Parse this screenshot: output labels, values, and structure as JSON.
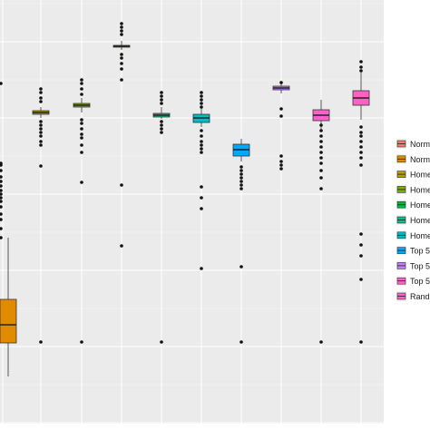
{
  "chart_data": {
    "type": "boxplot",
    "title": "",
    "xlabel": "",
    "ylabel": "",
    "ylim": [
      0,
      1
    ],
    "grid": true,
    "legend_position": "right",
    "series": [
      {
        "name": "Norm",
        "color": "#F8766D",
        "q1": 0.3,
        "median": 0.5,
        "q3": 0.6,
        "whisker_low": 0.2,
        "whisker_high": 0.8,
        "outliers": [
          0.9,
          0.92,
          0.94,
          0.95,
          0.96,
          0.97,
          0.98,
          0.99,
          1.0,
          1.02,
          1.04,
          1.1,
          1.3,
          1.42
        ]
      },
      {
        "name": "Norm",
        "color": "#E08B00",
        "q1": 0.24,
        "median": 0.3,
        "q3": 0.36,
        "whisker_low": 0.18,
        "whisker_high": 0.6,
        "outliers": []
      },
      {
        "name": "Home",
        "color": "#B79F00",
        "q1": 1.403,
        "median": 1.407,
        "q3": 1.411,
        "whisker_low": 1.396,
        "whisker_high": 1.418,
        "outliers": [
          1.22,
          1.34,
          1.36,
          1.37,
          1.38,
          1.39,
          1.45,
          1.47,
          1.49,
          1.51,
          0.3
        ]
      },
      {
        "name": "Home",
        "color": "#7CAE00",
        "q1": 1.418,
        "median": 1.422,
        "q3": 1.426,
        "whisker_low": 1.41,
        "whisker_high": 1.44,
        "outliers": [
          1.16,
          1.24,
          1.3,
          1.33,
          1.35,
          1.37,
          1.38,
          1.39,
          1.45,
          1.47,
          1.49,
          1.51,
          1.52,
          1.53,
          0.3
        ]
      },
      {
        "name": "Home",
        "color": "#00BA38",
        "q1": 1.66,
        "median": 1.662,
        "q3": 1.664,
        "whisker_low": 1.62,
        "whisker_high": 1.72,
        "outliers": [
          1.16,
          0.93,
          1.52,
          1.56,
          1.58,
          1.6,
          1.74,
          1.76,
          1.78,
          1.8
        ]
      },
      {
        "name": "Home",
        "color": "#00C08B",
        "q1": 1.392,
        "median": 1.398,
        "q3": 1.404,
        "whisker_low": 1.37,
        "whisker_high": 1.43,
        "outliers": [
          1.44,
          1.46,
          1.47,
          1.48,
          1.49,
          1.5,
          1.51,
          0.3
        ]
      },
      {
        "name": "Home",
        "color": "#00BFC4",
        "q1": 1.365,
        "median": 1.38,
        "q3": 1.395,
        "whisker_low": 1.34,
        "whisker_high": 1.42,
        "outliers": [
          1.3,
          1.31,
          1.32,
          1.33,
          1.18,
          1.16,
          1.08,
          0.63,
          1.46,
          1.48,
          1.49,
          1.5,
          1.51,
          1.52
        ]
      },
      {
        "name": "Top 5",
        "color": "#00A9FF",
        "q1": 1.24,
        "median": 1.26,
        "q3": 1.28,
        "whisker_low": 1.2,
        "whisker_high": 1.3,
        "outliers": [
          1.19,
          1.18,
          1.17,
          1.16,
          1.15,
          0.64,
          0.3
        ]
      },
      {
        "name": "Top 5",
        "color": "#C77CFF",
        "q1": 1.512,
        "median": 1.515,
        "q3": 1.518,
        "whisker_low": 1.5,
        "whisker_high": 1.53,
        "outliers": [
          1.44,
          1.42,
          1.38,
          1.24,
          1.22,
          1.2,
          1.18
        ]
      },
      {
        "name": "Top 5",
        "color": "#FF61CC",
        "q1": 1.385,
        "median": 1.4,
        "q3": 1.42,
        "whisker_low": 1.32,
        "whisker_high": 1.47,
        "outliers": [
          1.3,
          1.28,
          1.26,
          1.25,
          1.23,
          1.2,
          1.18,
          1.15,
          1.13,
          0.3
        ]
      },
      {
        "name": "Rand",
        "color": "#FF61C3",
        "q1": 1.45,
        "median": 1.48,
        "q3": 1.51,
        "whisker_low": 1.38,
        "whisker_high": 1.58,
        "outliers": [
          1.6,
          1.62,
          1.64,
          1.66,
          1.36,
          1.34,
          1.32,
          1.3,
          1.28,
          1.26,
          1.24,
          1.22,
          1.2,
          1.02,
          0.98,
          0.3
        ]
      }
    ],
    "legend": [
      "Norm",
      "Norm",
      "Home",
      "Home",
      "Home",
      "Home",
      "Home",
      "Top 5",
      "Top 5",
      "Top 5",
      "Rand"
    ]
  }
}
